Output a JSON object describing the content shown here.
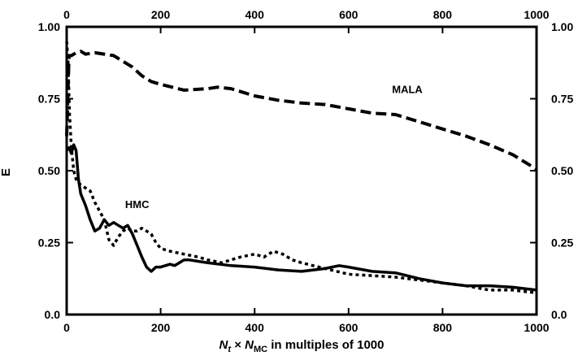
{
  "chart_data": {
    "type": "line",
    "title": "",
    "xlabel": {
      "base1": "N",
      "sub1": "t",
      "mid": " × ",
      "base2": "N",
      "sub2": "MC",
      "rest": " in multiples of 1000"
    },
    "ylabel": "E",
    "xlim": [
      0,
      1000
    ],
    "ylim": [
      0,
      1
    ],
    "x_ticks": [
      "0",
      "200",
      "400",
      "600",
      "800",
      "1000"
    ],
    "y_ticks": [
      "0.0",
      "0.25",
      "0.50",
      "0.75",
      "1.00"
    ],
    "right_y_ticks": [
      "0.0",
      "0.25",
      "0.50",
      "0.75",
      "1.00"
    ],
    "grid": false,
    "annotations": [
      {
        "text": "MALA",
        "x": 725,
        "y": 0.77
      },
      {
        "text": "HMC",
        "x": 150,
        "y": 0.37
      }
    ],
    "series": [
      {
        "style": "dashed",
        "x": [
          0,
          5,
          10,
          20,
          30,
          40,
          60,
          80,
          100,
          120,
          140,
          160,
          180,
          200,
          250,
          300,
          320,
          350,
          400,
          450,
          500,
          550,
          600,
          650,
          700,
          750,
          800,
          850,
          900,
          950,
          1000
        ],
        "y": [
          0.62,
          0.9,
          0.9,
          0.91,
          0.915,
          0.905,
          0.91,
          0.905,
          0.9,
          0.88,
          0.86,
          0.83,
          0.81,
          0.8,
          0.78,
          0.785,
          0.79,
          0.785,
          0.76,
          0.745,
          0.735,
          0.73,
          0.715,
          0.7,
          0.695,
          0.67,
          0.645,
          0.62,
          0.59,
          0.555,
          0.505
        ]
      },
      {
        "style": "solid",
        "x": [
          0,
          5,
          10,
          15,
          20,
          25,
          30,
          40,
          50,
          60,
          70,
          80,
          90,
          100,
          110,
          120,
          130,
          140,
          150,
          160,
          170,
          180,
          190,
          200,
          210,
          220,
          230,
          240,
          250,
          260,
          280,
          300,
          350,
          400,
          450,
          500,
          550,
          580,
          600,
          650,
          700,
          750,
          800,
          850,
          900,
          950,
          1000
        ],
        "y": [
          0.57,
          0.58,
          0.56,
          0.59,
          0.57,
          0.47,
          0.42,
          0.38,
          0.33,
          0.29,
          0.3,
          0.33,
          0.31,
          0.32,
          0.31,
          0.3,
          0.31,
          0.28,
          0.24,
          0.2,
          0.165,
          0.15,
          0.165,
          0.165,
          0.17,
          0.175,
          0.17,
          0.18,
          0.19,
          0.19,
          0.185,
          0.18,
          0.17,
          0.165,
          0.155,
          0.15,
          0.16,
          0.17,
          0.165,
          0.15,
          0.145,
          0.125,
          0.11,
          0.1,
          0.1,
          0.095,
          0.085
        ]
      },
      {
        "style": "dotted",
        "x": [
          0,
          3,
          6,
          10,
          15,
          20,
          30,
          40,
          50,
          60,
          70,
          80,
          90,
          100,
          110,
          120,
          130,
          140,
          150,
          160,
          170,
          180,
          190,
          200,
          220,
          250,
          280,
          300,
          330,
          350,
          370,
          400,
          420,
          440,
          460,
          480,
          500,
          550,
          600,
          650,
          700,
          750,
          800,
          850,
          900,
          950,
          1000
        ],
        "y": [
          0.95,
          0.88,
          0.7,
          0.58,
          0.5,
          0.47,
          0.45,
          0.44,
          0.43,
          0.39,
          0.36,
          0.33,
          0.26,
          0.24,
          0.27,
          0.29,
          0.3,
          0.29,
          0.29,
          0.3,
          0.29,
          0.28,
          0.25,
          0.23,
          0.22,
          0.21,
          0.2,
          0.19,
          0.18,
          0.19,
          0.2,
          0.21,
          0.2,
          0.22,
          0.21,
          0.19,
          0.18,
          0.16,
          0.14,
          0.135,
          0.13,
          0.12,
          0.11,
          0.1,
          0.085,
          0.085,
          0.075
        ]
      }
    ]
  }
}
